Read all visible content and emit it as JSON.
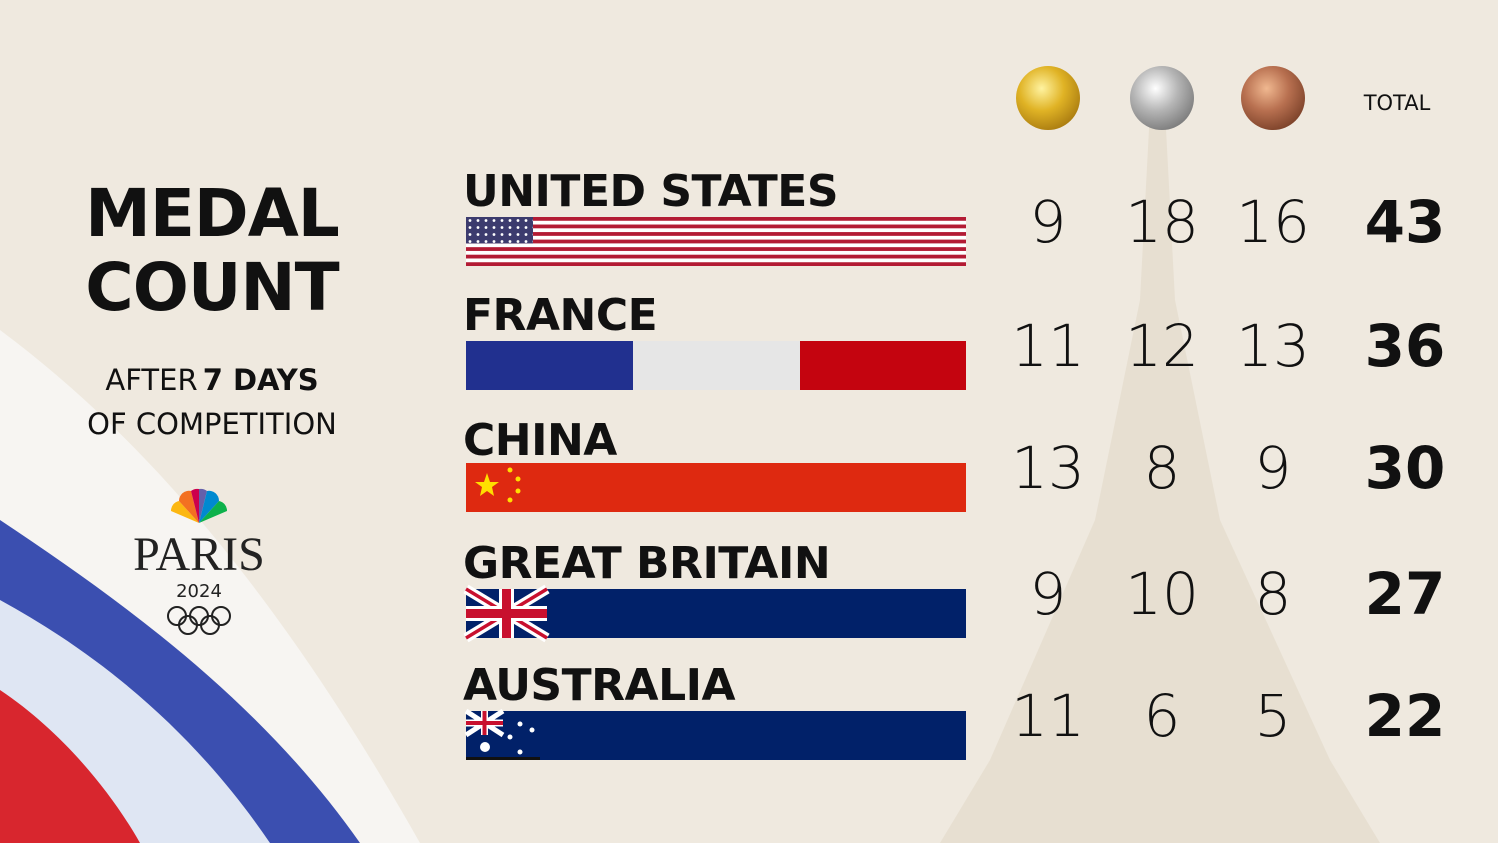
{
  "header": {
    "title_lines": [
      "MEDAL",
      "COUNT"
    ],
    "subtitle_line1": [
      "AFTER",
      "7 DAYS"
    ],
    "subtitle_line2": "OF COMPETITION",
    "logo_text": "PARIS",
    "logo_year": "2024"
  },
  "table": {
    "total_header": "TOTAL",
    "rows": [
      {
        "country": "UNITED STATES",
        "gold": 9,
        "silver": 18,
        "bronze": 16,
        "total": 43
      },
      {
        "country": "FRANCE",
        "gold": 11,
        "silver": 12,
        "bronze": 13,
        "total": 36
      },
      {
        "country": "CHINA",
        "gold": 13,
        "silver": 8,
        "bronze": 9,
        "total": 30
      },
      {
        "country": "GREAT BRITAIN",
        "gold": 9,
        "silver": 10,
        "bronze": 8,
        "total": 27
      },
      {
        "country": "AUSTRALIA",
        "gold": 11,
        "silver": 6,
        "bronze": 5,
        "total": 22
      }
    ]
  }
}
